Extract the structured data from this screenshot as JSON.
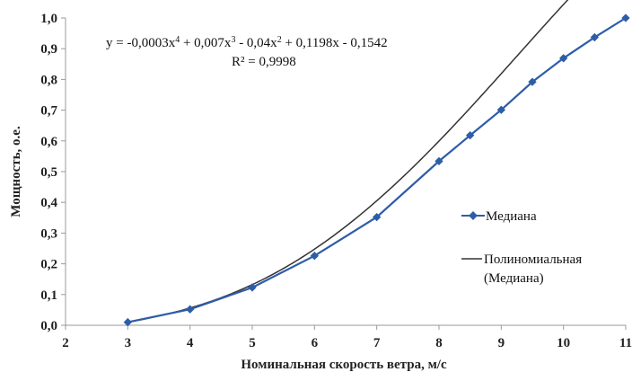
{
  "chart_data": {
    "type": "line",
    "title": "",
    "xlabel": "Номинальная скорость ветра, м/с",
    "ylabel": "Мощность, о.е.",
    "xlim": [
      2,
      11
    ],
    "ylim": [
      0,
      1
    ],
    "x_ticks": [
      "2",
      "3",
      "4",
      "5",
      "6",
      "7",
      "8",
      "9",
      "10",
      "11"
    ],
    "y_ticks": [
      "0,0",
      "0,1",
      "0,2",
      "0,3",
      "0,4",
      "0,5",
      "0,6",
      "0,7",
      "0,8",
      "0,9",
      "1,0"
    ],
    "grid": false,
    "legend_position": "right",
    "series": [
      {
        "name": "Медиана",
        "color": "#2E5DA8",
        "marker": "diamond",
        "x": [
          3,
          4,
          5,
          6,
          7,
          8,
          8.5,
          9,
          9.5,
          10,
          10.5,
          11
        ],
        "y": [
          0.01,
          0.052,
          0.123,
          0.226,
          0.352,
          0.534,
          0.618,
          0.701,
          0.792,
          0.869,
          0.937,
          1.0
        ]
      },
      {
        "name": "Полиномиальная (Медиана)",
        "legend_lines": [
          "Полиномиальная",
          "(Медиана)"
        ],
        "color": "#333333",
        "type": "trendline",
        "coefficients": [
          -0.0003,
          0.007,
          -0.04,
          0.1198,
          -0.1542
        ],
        "x_range": [
          3,
          11
        ]
      }
    ],
    "annotations": {
      "equation_line1_a": "y = -0,0003x",
      "equation_sup1": "4",
      "equation_line1_b": " + 0,007x",
      "equation_sup2": "3",
      "equation_line1_c": " - 0,04x",
      "equation_sup3": "2",
      "equation_line1_d": " + 0,1198x - 0,1542",
      "r2": "R² = 0,9998"
    }
  }
}
